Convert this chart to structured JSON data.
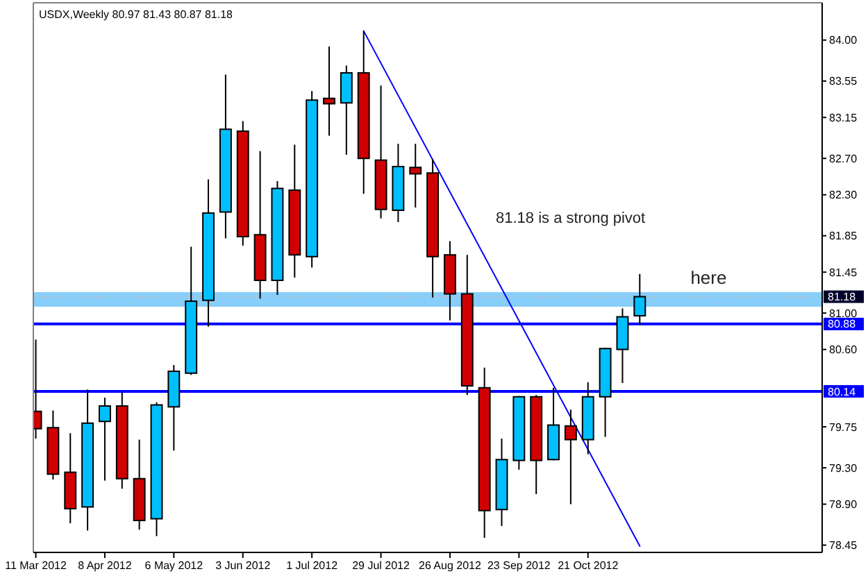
{
  "chart_data": {
    "type": "candlestick",
    "title": "USDX,Weekly 80.97 81.43 80.87 81.18",
    "x": [
      "2012-03-11",
      "2012-03-18",
      "2012-03-25",
      "2012-04-01",
      "2012-04-08",
      "2012-04-15",
      "2012-04-22",
      "2012-04-29",
      "2012-05-06",
      "2012-05-13",
      "2012-05-20",
      "2012-05-27",
      "2012-06-03",
      "2012-06-10",
      "2012-06-17",
      "2012-06-24",
      "2012-07-01",
      "2012-07-08",
      "2012-07-15",
      "2012-07-22",
      "2012-07-29",
      "2012-08-05",
      "2012-08-12",
      "2012-08-19",
      "2012-08-26",
      "2012-09-02",
      "2012-09-09",
      "2012-09-16",
      "2012-09-23",
      "2012-09-30",
      "2012-10-07",
      "2012-10-14",
      "2012-10-21",
      "2012-10-28",
      "2012-11-04",
      "2012-11-11"
    ],
    "ohlc": [
      [
        79.92,
        80.71,
        79.62,
        79.73
      ],
      [
        79.74,
        79.93,
        79.17,
        79.23
      ],
      [
        79.25,
        79.68,
        78.69,
        78.85
      ],
      [
        78.87,
        80.16,
        78.61,
        79.79
      ],
      [
        79.81,
        80.07,
        79.16,
        79.98
      ],
      [
        79.98,
        80.13,
        79.07,
        79.18
      ],
      [
        79.18,
        79.61,
        78.62,
        78.72
      ],
      [
        78.74,
        80.02,
        78.55,
        79.99
      ],
      [
        79.97,
        80.43,
        79.49,
        80.36
      ],
      [
        80.34,
        81.73,
        80.32,
        81.13
      ],
      [
        81.14,
        82.47,
        80.85,
        82.1
      ],
      [
        82.11,
        83.62,
        81.82,
        83.02
      ],
      [
        83.0,
        83.11,
        81.74,
        81.84
      ],
      [
        81.86,
        82.78,
        81.16,
        81.36
      ],
      [
        81.36,
        82.45,
        81.2,
        82.37
      ],
      [
        82.35,
        82.85,
        81.39,
        81.64
      ],
      [
        81.62,
        83.44,
        81.5,
        83.34
      ],
      [
        83.36,
        83.93,
        82.95,
        83.3
      ],
      [
        83.31,
        83.72,
        82.74,
        83.64
      ],
      [
        83.64,
        84.1,
        82.31,
        82.7
      ],
      [
        82.68,
        83.5,
        82.04,
        82.14
      ],
      [
        82.13,
        82.86,
        82.0,
        82.61
      ],
      [
        82.6,
        82.86,
        82.16,
        82.53
      ],
      [
        82.54,
        82.69,
        81.17,
        81.62
      ],
      [
        81.64,
        81.79,
        80.92,
        81.21
      ],
      [
        81.21,
        81.64,
        80.1,
        80.2
      ],
      [
        80.18,
        80.4,
        78.53,
        78.83
      ],
      [
        78.84,
        79.62,
        78.66,
        79.39
      ],
      [
        79.38,
        80.09,
        79.28,
        80.08
      ],
      [
        80.08,
        80.1,
        79.01,
        79.38
      ],
      [
        79.39,
        80.18,
        79.38,
        79.77
      ],
      [
        79.76,
        79.94,
        78.9,
        79.61
      ],
      [
        79.61,
        80.24,
        79.45,
        80.08
      ],
      [
        80.08,
        80.62,
        79.64,
        80.61
      ],
      [
        80.6,
        81.05,
        80.23,
        80.96
      ],
      [
        80.97,
        81.43,
        80.87,
        81.18
      ]
    ],
    "colors": [
      "#d00000",
      "#d00000",
      "#d00000",
      "#00bfff",
      "#00bfff",
      "#d00000",
      "#d00000",
      "#00bfff",
      "#00bfff",
      "#00bfff",
      "#00bfff",
      "#00bfff",
      "#d00000",
      "#d00000",
      "#00bfff",
      "#d00000",
      "#00bfff",
      "#d00000",
      "#00bfff",
      "#d00000",
      "#d00000",
      "#00bfff",
      "#d00000",
      "#d00000",
      "#d00000",
      "#d00000",
      "#d00000",
      "#00bfff",
      "#00bfff",
      "#d00000",
      "#00bfff",
      "#d00000",
      "#00bfff",
      "#00bfff",
      "#00bfff",
      "#00bfff"
    ],
    "series": [
      {
        "type": "line",
        "x": [
          "2012-07-22",
          "2012-11-11"
        ],
        "values": [
          84.1,
          78.44
        ],
        "color": "#0000ff"
      }
    ],
    "xlim": [
      "2012-03-10",
      "2013-01-24"
    ],
    "xticks": [
      {
        "value": "2012-03-11",
        "label": "11 Mar 2012"
      },
      {
        "value": "2012-04-08",
        "label": "8 Apr 2012"
      },
      {
        "value": "2012-05-06",
        "label": "6 May 2012"
      },
      {
        "value": "2012-06-03",
        "label": "3 Jun 2012"
      },
      {
        "value": "2012-07-01",
        "label": "1 Jul 2012"
      },
      {
        "value": "2012-07-29",
        "label": "29 Jul 2012"
      },
      {
        "value": "2012-08-26",
        "label": "26 Aug 2012"
      },
      {
        "value": "2012-09-23",
        "label": "23 Sep 2012"
      },
      {
        "value": "2012-10-21",
        "label": "21 Oct 2012"
      }
    ],
    "ylim": [
      78.37,
      84.41
    ],
    "yticks": [
      {
        "value": 84,
        "label": "84.00"
      },
      {
        "value": 83.55,
        "label": "83.55"
      },
      {
        "value": 83.15,
        "label": "83.15"
      },
      {
        "value": 82.7,
        "label": "82.70"
      },
      {
        "value": 82.3,
        "label": "82.30"
      },
      {
        "value": 81.85,
        "label": "81.85"
      },
      {
        "value": 81.45,
        "label": "81.45"
      },
      {
        "value": 81,
        "label": "81.00"
      },
      {
        "value": 80.6,
        "label": "80.60"
      },
      {
        "value": 79.75,
        "label": "79.75"
      },
      {
        "value": 79.3,
        "label": "79.30"
      },
      {
        "value": 78.9,
        "label": "78.90"
      },
      {
        "value": 78.45,
        "label": "78.45"
      }
    ],
    "ref_lines": [
      {
        "axis": "y",
        "value": 81.18,
        "label": "81.18",
        "color": "#c0c0c0",
        "line_style": "dotted"
      },
      {
        "axis": "y",
        "value": 80.88,
        "label": "80.88",
        "color": "#0000ff",
        "line_style": "solid"
      },
      {
        "axis": "y",
        "value": 80.14,
        "label": "80.14",
        "color": "#0000ff",
        "line_style": "solid"
      }
    ],
    "bands": [
      {
        "axis": "y",
        "from": 81.07,
        "to": 81.23,
        "color": "#87cefa"
      }
    ],
    "annotations": [
      "81.18 is a strong pivot",
      "here"
    ]
  }
}
